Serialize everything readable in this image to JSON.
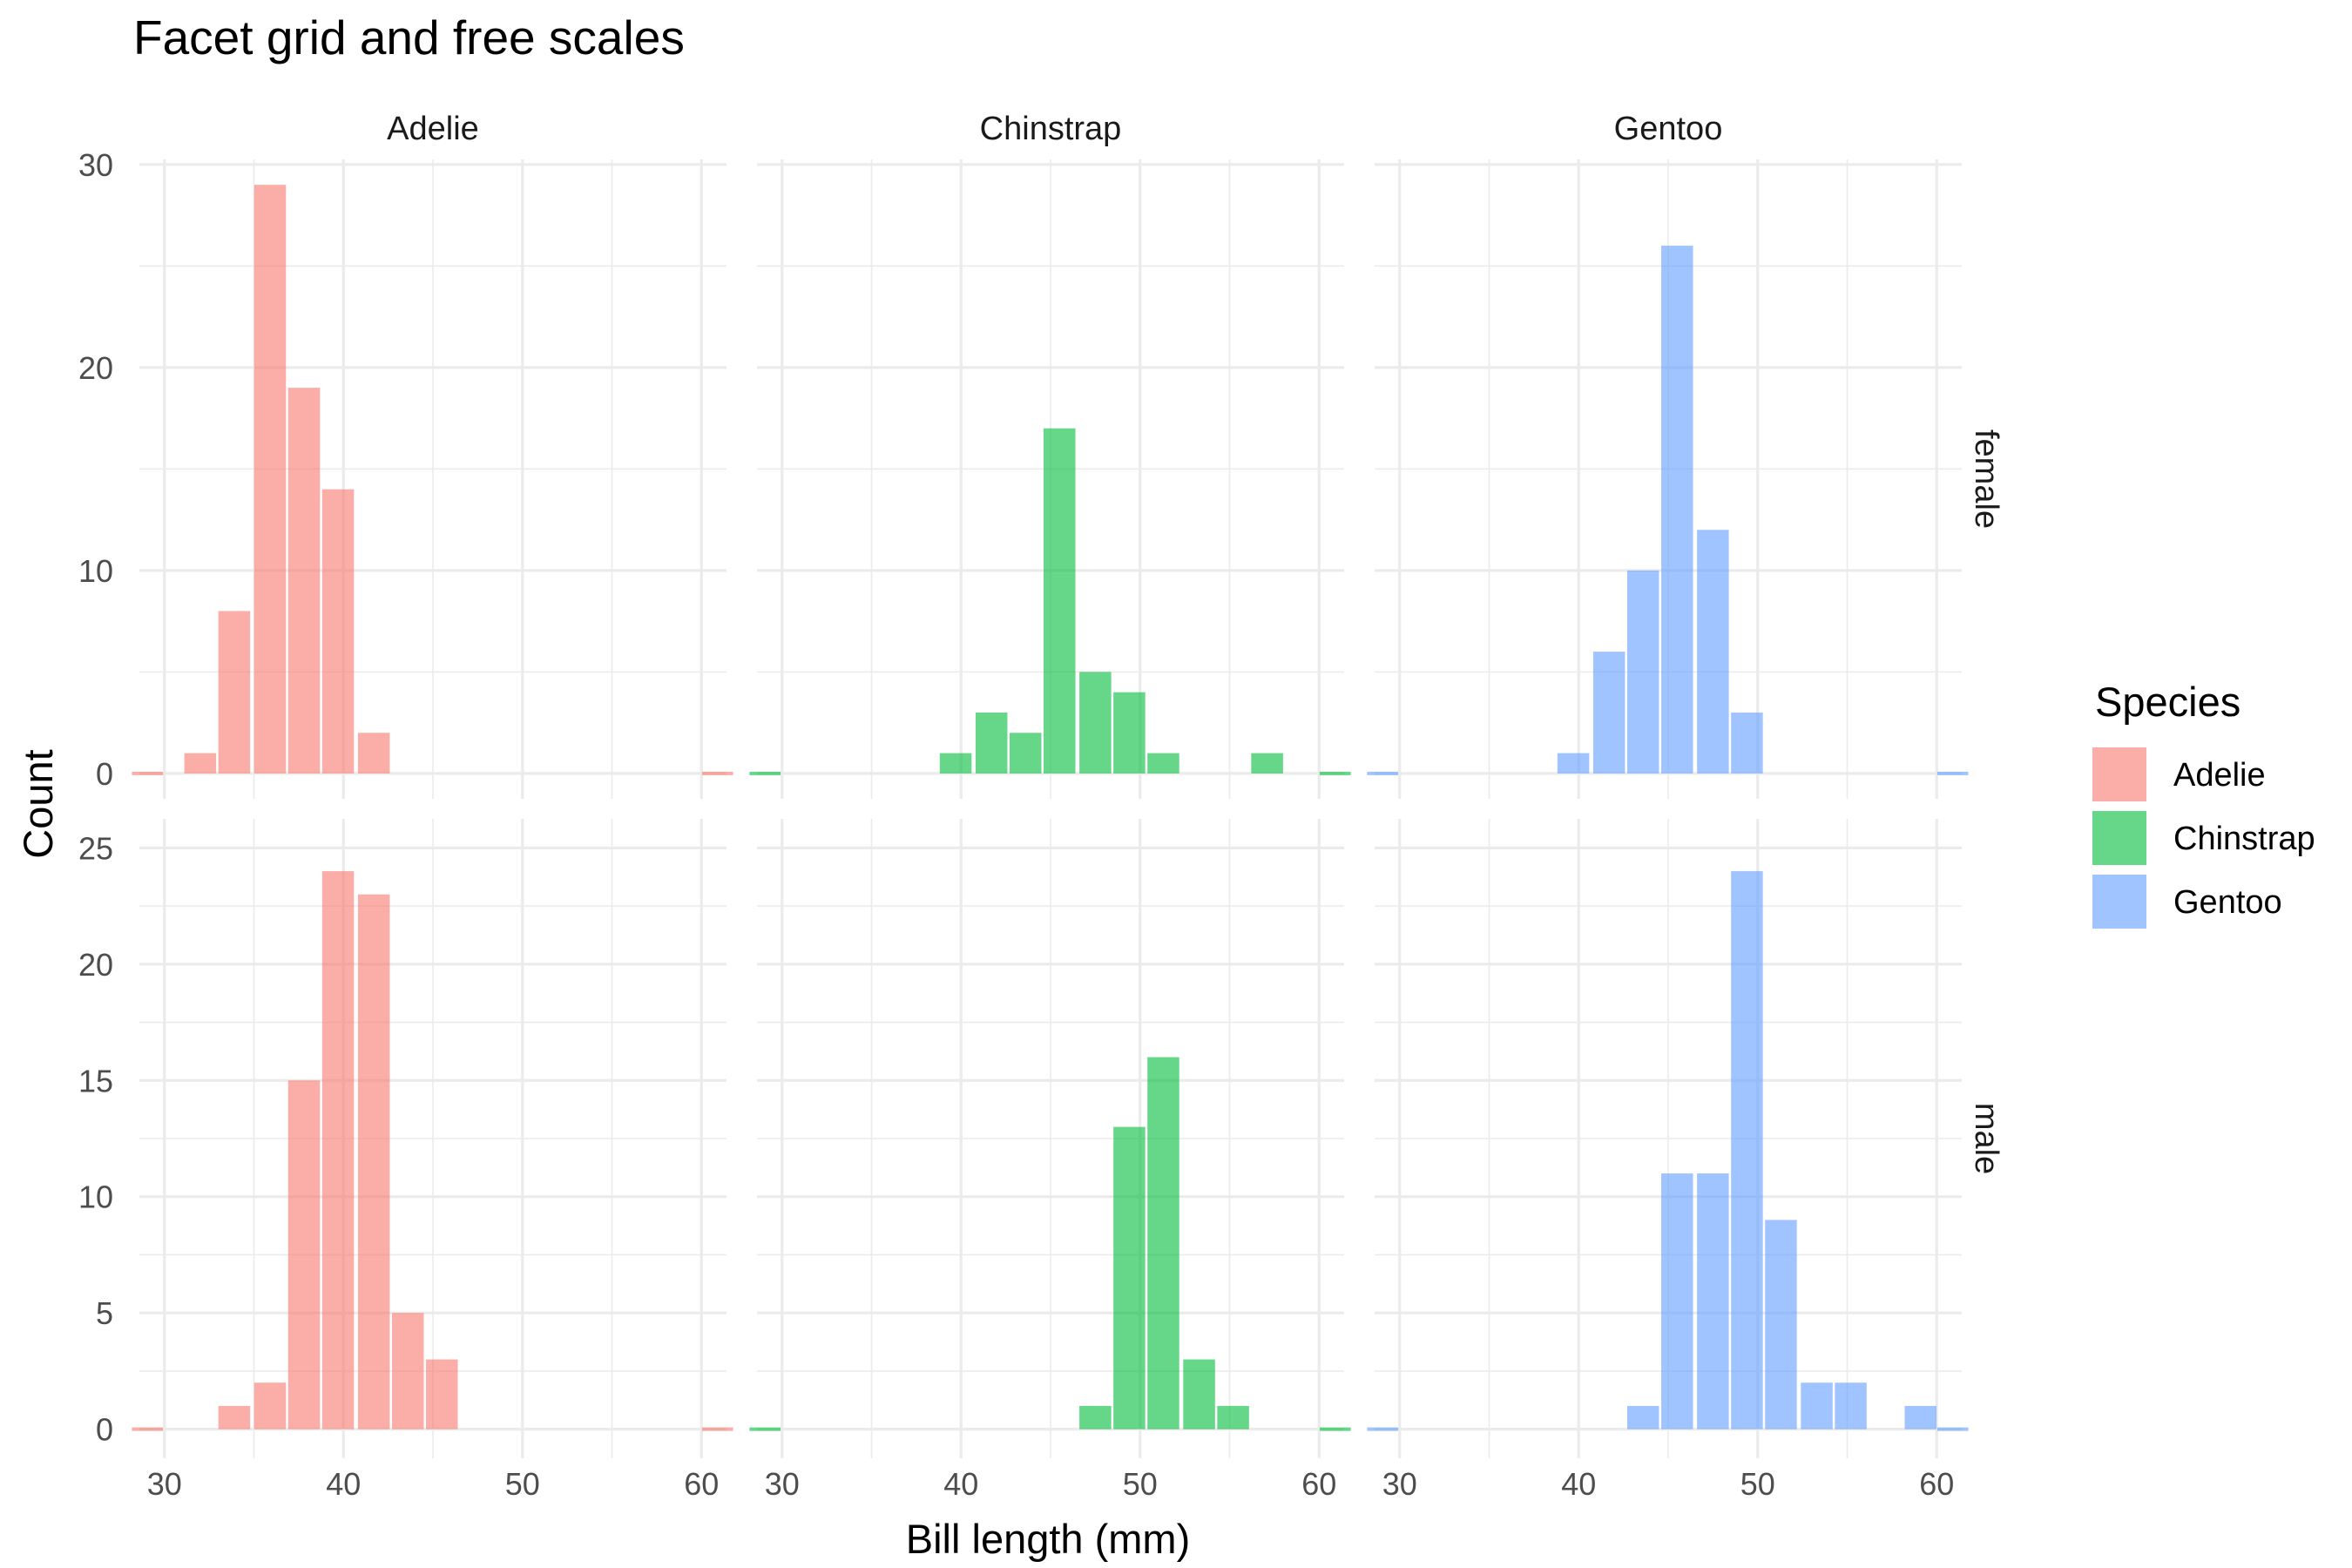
{
  "chart_data": {
    "type": "bar",
    "title": "Facet grid and free scales",
    "xlabel": "Bill length (mm)",
    "ylabel": "Count",
    "legend": {
      "title": "Species",
      "placement": "right",
      "entries": [
        {
          "name": "Adelie",
          "color": "#F8766D"
        },
        {
          "name": "Chinstrap",
          "color": "#00BA38"
        },
        {
          "name": "Gentoo",
          "color": "#619CFF"
        }
      ]
    },
    "columns": [
      "Adelie",
      "Chinstrap",
      "Gentoo"
    ],
    "rows": [
      {
        "label": "female",
        "ylim": [
          0,
          30
        ],
        "yticks": [
          0,
          10,
          20,
          30
        ],
        "yticks_labels": [
          "0",
          "10",
          "20",
          "30"
        ]
      },
      {
        "label": "male",
        "ylim": [
          0,
          25
        ],
        "yticks": [
          0,
          5,
          10,
          15,
          20,
          25
        ],
        "yticks_labels": [
          "0",
          "5",
          "10",
          "15",
          "20",
          "25"
        ]
      }
    ],
    "xlim": [
      30,
      60
    ],
    "xticks": [
      30,
      40,
      50,
      60
    ],
    "xtick_labels": [
      "30",
      "40",
      "50",
      "60"
    ],
    "bin_width": 1.93,
    "grid": true,
    "panels": [
      {
        "row": "female",
        "species": "Adelie",
        "color": "#F8766D",
        "bins": [
          {
            "x": 32.0,
            "count": 1
          },
          {
            "x": 33.9,
            "count": 8
          },
          {
            "x": 35.9,
            "count": 29
          },
          {
            "x": 37.8,
            "count": 19
          },
          {
            "x": 39.7,
            "count": 14
          },
          {
            "x": 41.7,
            "count": 2
          }
        ]
      },
      {
        "row": "female",
        "species": "Chinstrap",
        "color": "#00BA38",
        "bins": [
          {
            "x": 39.7,
            "count": 1
          },
          {
            "x": 41.7,
            "count": 3
          },
          {
            "x": 43.6,
            "count": 2
          },
          {
            "x": 45.5,
            "count": 17
          },
          {
            "x": 47.5,
            "count": 5
          },
          {
            "x": 49.4,
            "count": 4
          },
          {
            "x": 51.3,
            "count": 1
          },
          {
            "x": 57.1,
            "count": 1
          }
        ]
      },
      {
        "row": "female",
        "species": "Gentoo",
        "color": "#619CFF",
        "bins": [
          {
            "x": 39.7,
            "count": 1
          },
          {
            "x": 41.7,
            "count": 6
          },
          {
            "x": 43.6,
            "count": 10
          },
          {
            "x": 45.5,
            "count": 26
          },
          {
            "x": 47.5,
            "count": 12
          },
          {
            "x": 49.4,
            "count": 3
          }
        ]
      },
      {
        "row": "male",
        "species": "Adelie",
        "color": "#F8766D",
        "bins": [
          {
            "x": 33.9,
            "count": 1
          },
          {
            "x": 35.9,
            "count": 2
          },
          {
            "x": 37.8,
            "count": 15
          },
          {
            "x": 39.7,
            "count": 24
          },
          {
            "x": 41.7,
            "count": 23
          },
          {
            "x": 43.6,
            "count": 5
          },
          {
            "x": 45.5,
            "count": 3
          }
        ]
      },
      {
        "row": "male",
        "species": "Chinstrap",
        "color": "#00BA38",
        "bins": [
          {
            "x": 47.5,
            "count": 1
          },
          {
            "x": 49.4,
            "count": 13
          },
          {
            "x": 51.3,
            "count": 16
          },
          {
            "x": 53.3,
            "count": 3
          },
          {
            "x": 55.2,
            "count": 1
          }
        ]
      },
      {
        "row": "male",
        "species": "Gentoo",
        "color": "#619CFF",
        "bins": [
          {
            "x": 43.6,
            "count": 1
          },
          {
            "x": 45.5,
            "count": 11
          },
          {
            "x": 47.5,
            "count": 11
          },
          {
            "x": 49.4,
            "count": 24
          },
          {
            "x": 51.3,
            "count": 9
          },
          {
            "x": 53.3,
            "count": 2
          },
          {
            "x": 55.2,
            "count": 2
          },
          {
            "x": 59.1,
            "count": 1
          }
        ]
      }
    ]
  }
}
